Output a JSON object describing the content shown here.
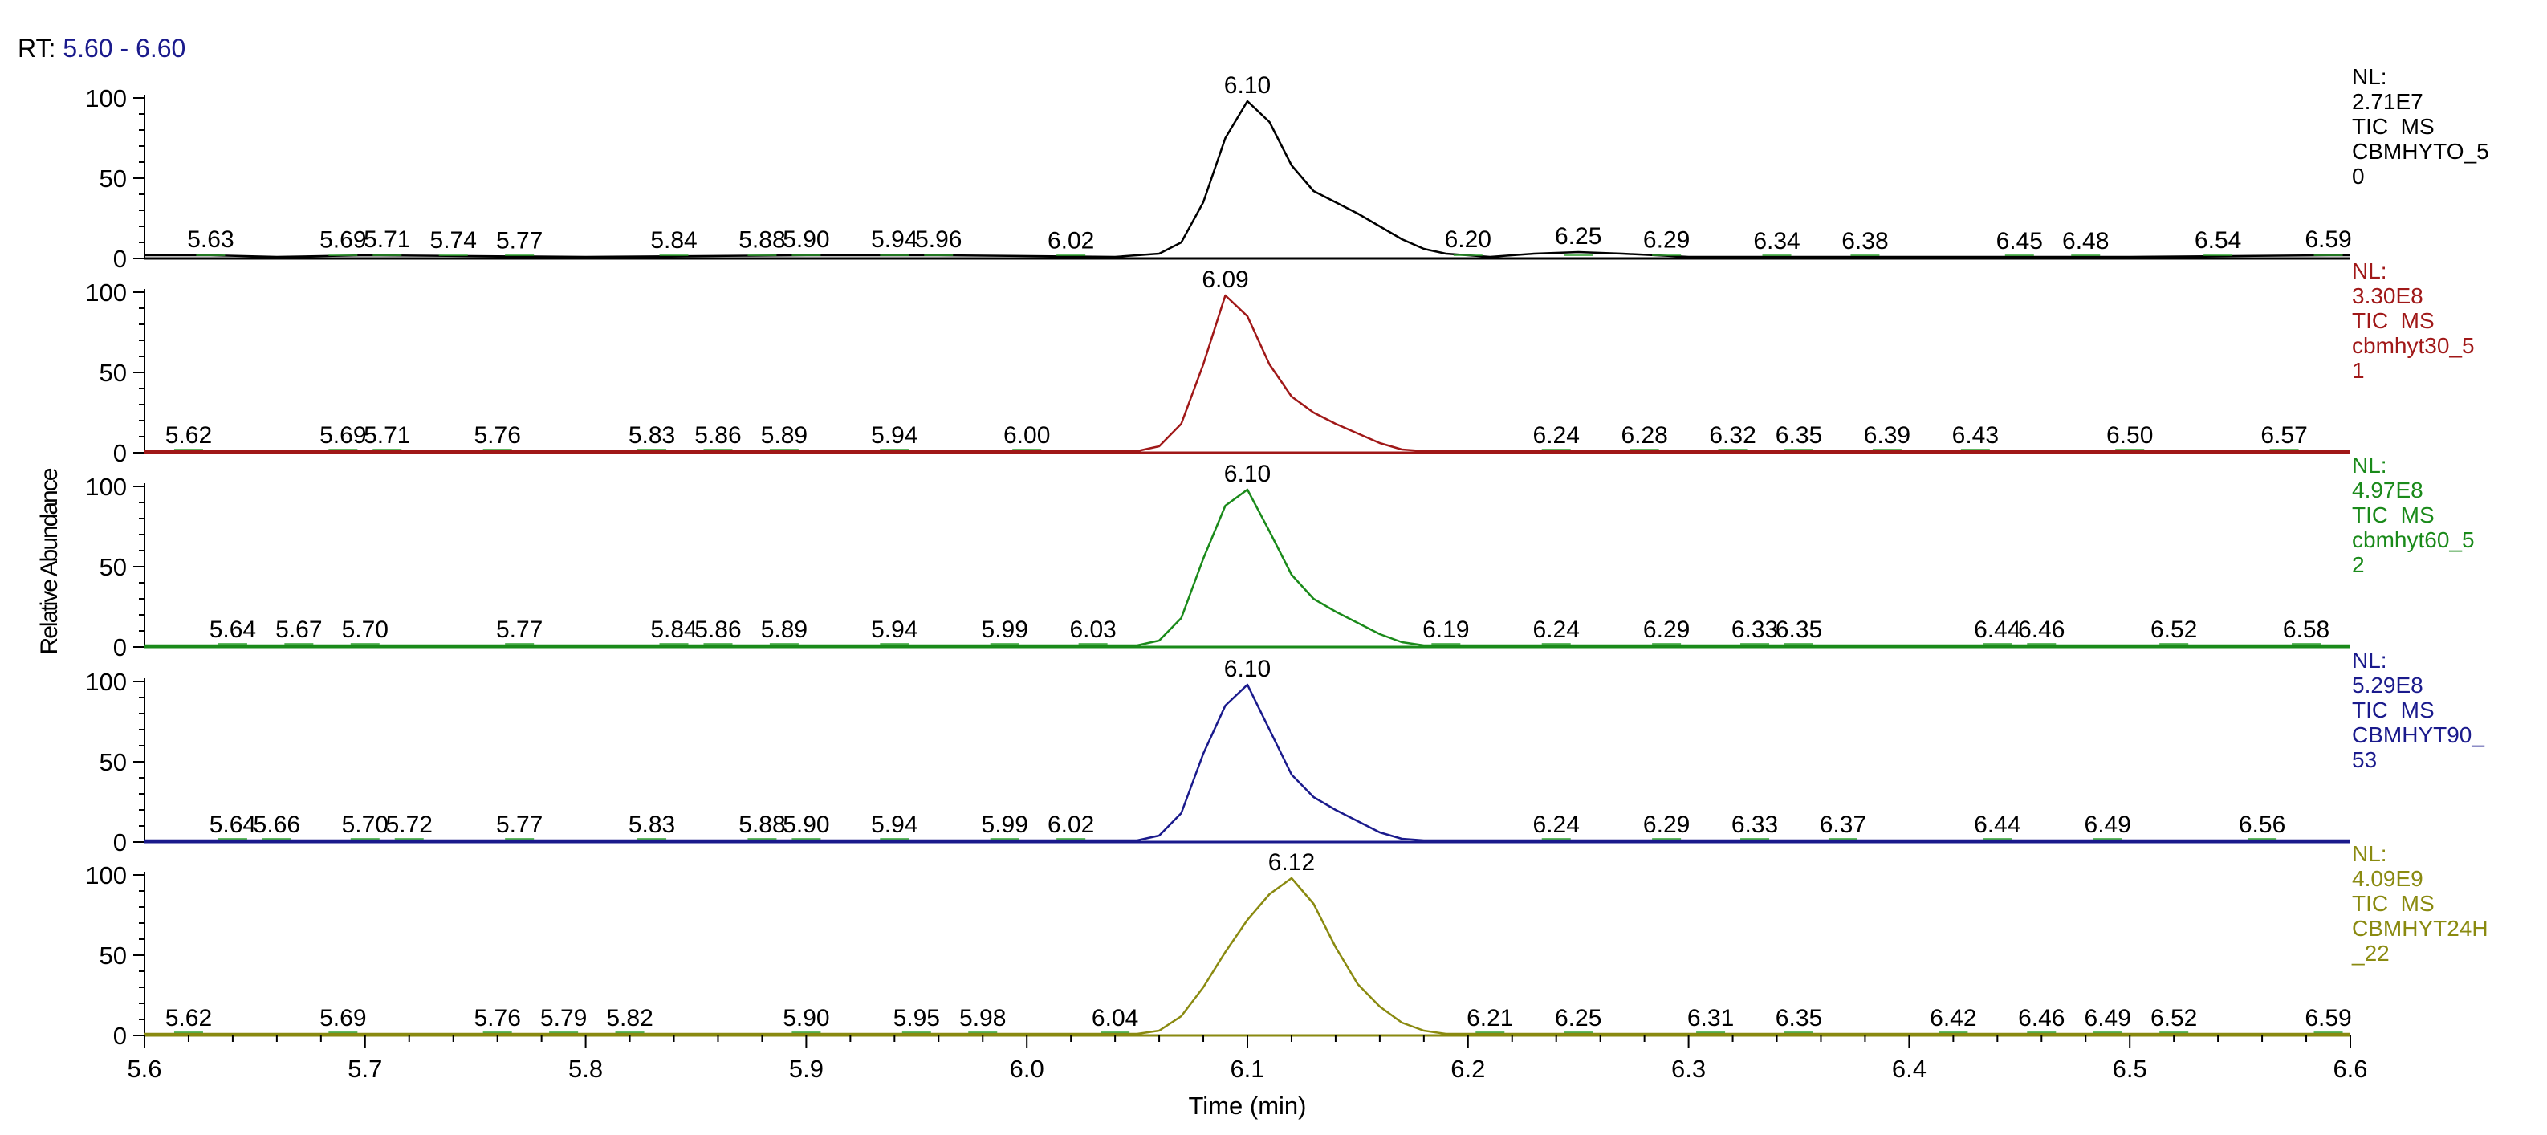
{
  "rt_label": "RT:",
  "rt_range": "5.60 - 6.60",
  "chart_data": {
    "type": "line",
    "xlabel": "Time (min)",
    "ylabel": "Relative Abundance",
    "xlim": [
      5.6,
      6.6
    ],
    "ylim": [
      0,
      100
    ],
    "x_ticks": [
      "5.6",
      "5.7",
      "5.8",
      "5.9",
      "6.0",
      "6.1",
      "6.2",
      "6.3",
      "6.4",
      "6.5",
      "6.6"
    ],
    "y_ticks": [
      "0",
      "50",
      "100"
    ],
    "panels": [
      {
        "color": "#000000",
        "nl": [
          "NL:",
          "2.71E7",
          "TIC  MS",
          "CBMHYTO_5",
          "0"
        ],
        "peak_labels": [
          "5.63",
          "5.69",
          "5.71",
          "5.74",
          "5.77",
          "5.84",
          "5.88",
          "5.90",
          "5.94",
          "5.96",
          "6.02",
          "6.10",
          "6.20",
          "6.25",
          "6.29",
          "6.34",
          "6.38",
          "6.45",
          "6.48",
          "6.54",
          "6.59"
        ],
        "profile": [
          [
            5.6,
            2
          ],
          [
            5.63,
            2
          ],
          [
            5.66,
            1
          ],
          [
            5.7,
            2
          ],
          [
            5.8,
            1
          ],
          [
            5.9,
            2
          ],
          [
            5.96,
            2
          ],
          [
            6.04,
            1
          ],
          [
            6.06,
            3
          ],
          [
            6.07,
            10
          ],
          [
            6.08,
            35
          ],
          [
            6.09,
            75
          ],
          [
            6.1,
            98
          ],
          [
            6.11,
            85
          ],
          [
            6.12,
            58
          ],
          [
            6.13,
            42
          ],
          [
            6.14,
            35
          ],
          [
            6.15,
            28
          ],
          [
            6.16,
            20
          ],
          [
            6.17,
            12
          ],
          [
            6.18,
            6
          ],
          [
            6.19,
            3
          ],
          [
            6.21,
            1
          ],
          [
            6.23,
            3
          ],
          [
            6.25,
            4
          ],
          [
            6.27,
            3
          ],
          [
            6.3,
            1
          ],
          [
            6.4,
            1
          ],
          [
            6.5,
            1
          ],
          [
            6.59,
            2
          ],
          [
            6.6,
            2
          ]
        ]
      },
      {
        "color": "#a01818",
        "nl": [
          "NL:",
          "3.30E8",
          "TIC  MS",
          "cbmhyt30_5",
          "1"
        ],
        "peak_labels": [
          "5.62",
          "5.69",
          "5.71",
          "5.76",
          "5.83",
          "5.86",
          "5.89",
          "5.94",
          "6.00",
          "6.09",
          "6.24",
          "6.28",
          "6.32",
          "6.35",
          "6.39",
          "6.43",
          "6.50",
          "6.57"
        ],
        "profile": [
          [
            5.6,
            1
          ],
          [
            5.7,
            1
          ],
          [
            5.9,
            1
          ],
          [
            6.05,
            1
          ],
          [
            6.06,
            4
          ],
          [
            6.07,
            18
          ],
          [
            6.08,
            55
          ],
          [
            6.09,
            98
          ],
          [
            6.1,
            85
          ],
          [
            6.11,
            55
          ],
          [
            6.12,
            35
          ],
          [
            6.13,
            25
          ],
          [
            6.14,
            18
          ],
          [
            6.15,
            12
          ],
          [
            6.16,
            6
          ],
          [
            6.17,
            2
          ],
          [
            6.18,
            1
          ],
          [
            6.4,
            1
          ],
          [
            6.6,
            1
          ]
        ]
      },
      {
        "color": "#1a8a1a",
        "nl": [
          "NL:",
          "4.97E8",
          "TIC  MS",
          "cbmhyt60_5",
          "2"
        ],
        "peak_labels": [
          "5.64",
          "5.67",
          "5.70",
          "5.77",
          "5.84",
          "5.86",
          "5.89",
          "5.94",
          "5.99",
          "6.03",
          "6.10",
          "6.19",
          "6.24",
          "6.29",
          "6.33",
          "6.35",
          "6.44",
          "6.46",
          "6.52",
          "6.58"
        ],
        "profile": [
          [
            5.6,
            1
          ],
          [
            5.8,
            1
          ],
          [
            6.05,
            1
          ],
          [
            6.06,
            4
          ],
          [
            6.07,
            18
          ],
          [
            6.08,
            55
          ],
          [
            6.09,
            88
          ],
          [
            6.1,
            98
          ],
          [
            6.11,
            72
          ],
          [
            6.12,
            45
          ],
          [
            6.13,
            30
          ],
          [
            6.14,
            22
          ],
          [
            6.15,
            15
          ],
          [
            6.16,
            8
          ],
          [
            6.17,
            3
          ],
          [
            6.18,
            1
          ],
          [
            6.4,
            1
          ],
          [
            6.6,
            1
          ]
        ]
      },
      {
        "color": "#1a1a8c",
        "nl": [
          "NL:",
          "5.29E8",
          "TIC  MS",
          "CBMHYT90_",
          "53"
        ],
        "peak_labels": [
          "5.64",
          "5.66",
          "5.70",
          "5.72",
          "5.77",
          "5.83",
          "5.88",
          "5.90",
          "5.94",
          "5.99",
          "6.02",
          "6.10",
          "6.24",
          "6.29",
          "6.33",
          "6.37",
          "6.44",
          "6.49",
          "6.56"
        ],
        "profile": [
          [
            5.6,
            1
          ],
          [
            5.8,
            1
          ],
          [
            6.05,
            1
          ],
          [
            6.06,
            4
          ],
          [
            6.07,
            18
          ],
          [
            6.08,
            55
          ],
          [
            6.09,
            85
          ],
          [
            6.1,
            98
          ],
          [
            6.11,
            70
          ],
          [
            6.12,
            42
          ],
          [
            6.13,
            28
          ],
          [
            6.14,
            20
          ],
          [
            6.15,
            13
          ],
          [
            6.16,
            6
          ],
          [
            6.17,
            2
          ],
          [
            6.18,
            1
          ],
          [
            6.4,
            1
          ],
          [
            6.6,
            1
          ]
        ]
      },
      {
        "color": "#8a8a10",
        "nl": [
          "NL:",
          "4.09E9",
          "TIC  MS",
          "CBMHYT24H",
          "_22"
        ],
        "peak_labels": [
          "5.62",
          "5.69",
          "5.76",
          "5.79",
          "5.82",
          "5.90",
          "5.95",
          "5.98",
          "6.04",
          "6.12",
          "6.21",
          "6.25",
          "6.31",
          "6.35",
          "6.42",
          "6.46",
          "6.49",
          "6.52",
          "6.59"
        ],
        "profile": [
          [
            5.6,
            1
          ],
          [
            5.8,
            1
          ],
          [
            6.05,
            1
          ],
          [
            6.06,
            3
          ],
          [
            6.07,
            12
          ],
          [
            6.08,
            30
          ],
          [
            6.09,
            52
          ],
          [
            6.1,
            72
          ],
          [
            6.11,
            88
          ],
          [
            6.12,
            98
          ],
          [
            6.13,
            82
          ],
          [
            6.14,
            55
          ],
          [
            6.15,
            32
          ],
          [
            6.16,
            18
          ],
          [
            6.17,
            8
          ],
          [
            6.18,
            3
          ],
          [
            6.19,
            1
          ],
          [
            6.4,
            1
          ],
          [
            6.6,
            1
          ]
        ]
      }
    ]
  }
}
